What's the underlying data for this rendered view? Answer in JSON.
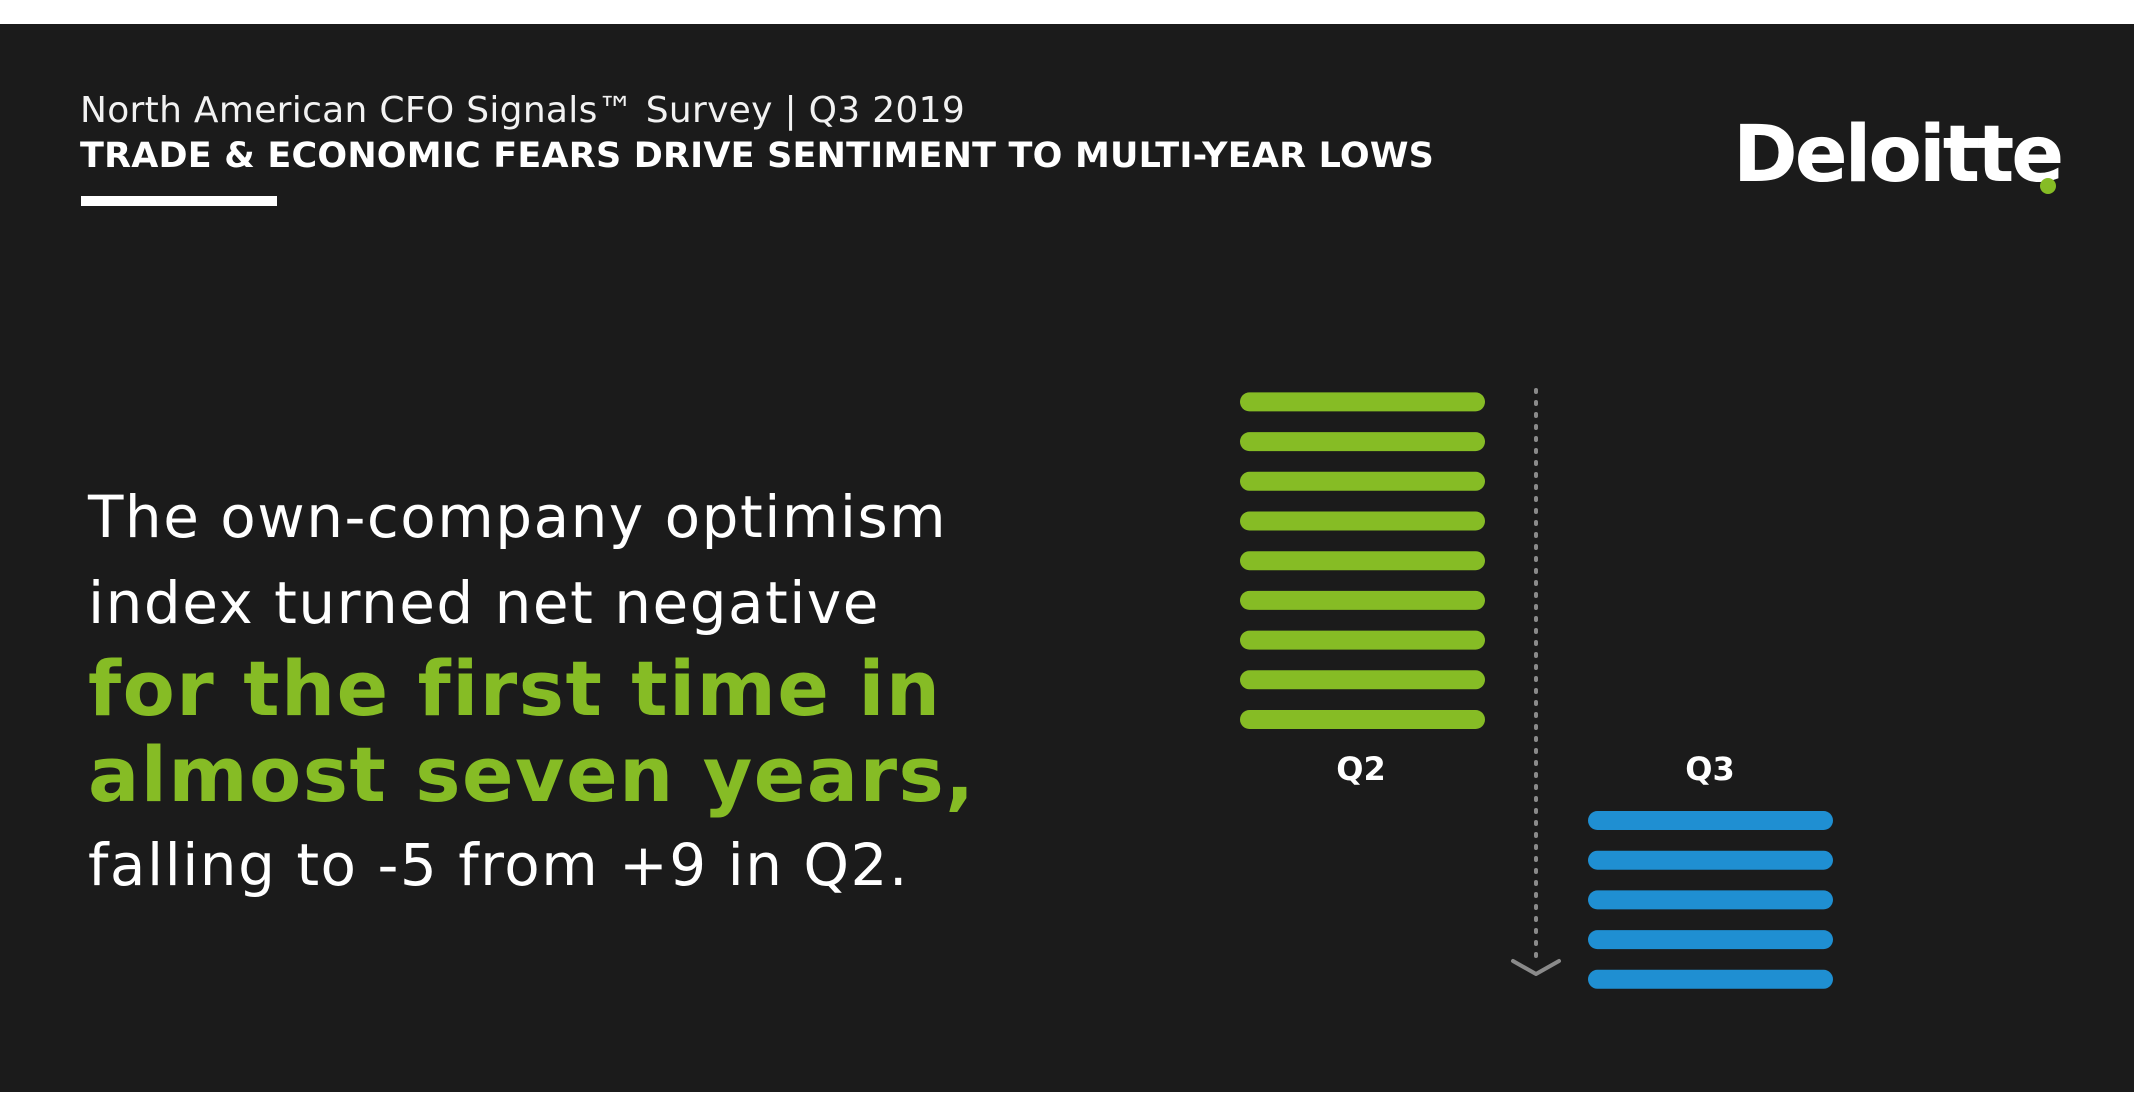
{
  "header": {
    "survey_line": "North American CFO Signals™ Survey | Q3 2019",
    "headline": "TRADE & ECONOMIC FEARS DRIVE SENTIMENT TO MULTI-YEAR LOWS"
  },
  "brand": {
    "logo_text": "Deloitte",
    "logo_dot_color": "#86bc25"
  },
  "message": {
    "line1": "The own-company optimism",
    "line2": "index turned net negative",
    "highlight1": "for the first time in",
    "highlight2": "almost seven years,",
    "line3": "falling to -5 from +9 in Q2."
  },
  "colors": {
    "background": "#1b1b1b",
    "highlight": "#86bc25",
    "q2_bars": "#86bc25",
    "q3_bars": "#1f8fd2",
    "arrow": "#8a8a8a"
  },
  "chart_data": {
    "type": "bar",
    "categories": [
      "Q2",
      "Q3"
    ],
    "values": [
      9,
      -5
    ],
    "note": "Each horizontal stripe represents one index point; Q2 stacked above the baseline (+9), Q3 below it (-5).",
    "bar_colors": [
      "#86bc25",
      "#1f8fd2"
    ],
    "divider_arrow": "down",
    "grid": false
  }
}
